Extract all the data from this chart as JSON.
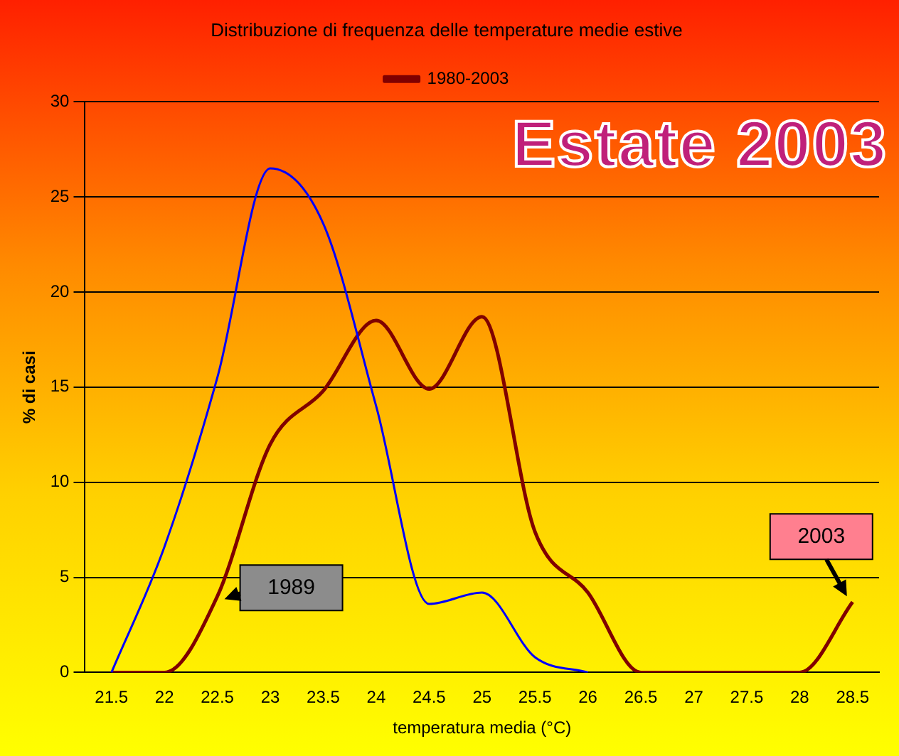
{
  "chart_data": {
    "type": "line",
    "title": "Distribuzione di frequenza delle temperature medie estive",
    "xlabel": "temperatura media (°C)",
    "ylabel": "% di casi",
    "categories": [
      "21.5",
      "22",
      "22.5",
      "23",
      "23.5",
      "24",
      "24.5",
      "25",
      "25.5",
      "26",
      "26.5",
      "27",
      "27.5",
      "28",
      "28.5"
    ],
    "series": [
      {
        "color": "#0000ff",
        "values": [
          0,
          6.6,
          15.5,
          26.5,
          23.6,
          14,
          3.6,
          4.2,
          0.8,
          0,
          null,
          null,
          null,
          null,
          null
        ]
      },
      {
        "name": "1980-2003",
        "color": "#800000",
        "values": [
          0,
          0,
          4,
          12,
          14.8,
          18.5,
          14.9,
          18.7,
          7.4,
          4.2,
          0,
          0,
          0,
          0,
          3.7
        ]
      }
    ],
    "ylim": [
      0,
      30
    ],
    "yticks": [
      0,
      5,
      10,
      15,
      20,
      25,
      30
    ],
    "grid": "y",
    "legend": "top",
    "marker": "none",
    "line_style": "solid",
    "annotations": [
      {
        "text": "1989",
        "x": "22.5",
        "y": 4
      },
      {
        "text": "2003",
        "x": "28.5",
        "y": 3.7
      },
      "Estate 2003"
    ]
  }
}
